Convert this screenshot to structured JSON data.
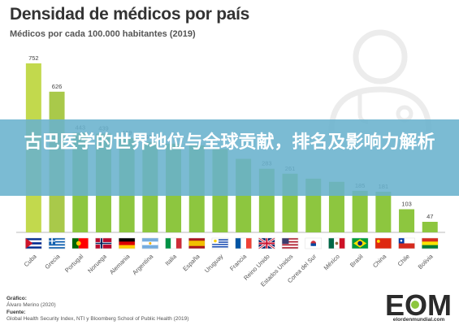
{
  "header": {
    "title": "Densidad de médicos por país",
    "subtitle": "Médicos por cada 100.000 habitantes (2019)"
  },
  "banner": {
    "text": "古巴医学的世界地位与全球贡献，排名及影响力解析"
  },
  "chart_data": {
    "type": "bar",
    "categories": [
      "Cuba",
      "Grecia",
      "Portugal",
      "Noruega",
      "Alemania",
      "Argentina",
      "Italia",
      "España",
      "Uruguay",
      "Francia",
      "Reino Unido",
      "Estados Unidos",
      "Corea del Sur",
      "México",
      "Brasil",
      "China",
      "Chile",
      "Bolivia"
    ],
    "values": [
      752,
      626,
      443,
      439,
      419,
      402,
      395,
      387,
      371,
      327,
      283,
      261,
      239,
      225,
      185,
      181,
      103,
      47
    ],
    "labels_visible": [
      "752",
      "626",
      "443",
      "439",
      "419",
      "402",
      "",
      "",
      "",
      "",
      "283",
      "261",
      "",
      "",
      "185",
      "181",
      "103",
      "47"
    ],
    "bar_color": "#8dc63f",
    "top_bar_color": "#c2d94d",
    "second_bar_color": "#a9c94a",
    "ylim": [
      0,
      800
    ],
    "grid": false,
    "flag_icons": [
      "cuba-flag",
      "greece-flag",
      "portugal-flag",
      "norway-flag",
      "germany-flag",
      "argentina-flag",
      "italy-flag",
      "spain-flag",
      "uruguay-flag",
      "france-flag",
      "uk-flag",
      "usa-flag",
      "south-korea-flag",
      "mexico-flag",
      "brazil-flag",
      "china-flag",
      "chile-flag",
      "bolivia-flag"
    ]
  },
  "footer": {
    "graphic_label": "Gráfico:",
    "graphic_author": "Álvaro Merino (2020)",
    "source_label": "Fuente:",
    "source_text": "Global Health Security Index, NTI y Bloomberg School of Public Health (2019)"
  },
  "logo": {
    "mark": "EOM",
    "site": "elordenmundial.com"
  }
}
